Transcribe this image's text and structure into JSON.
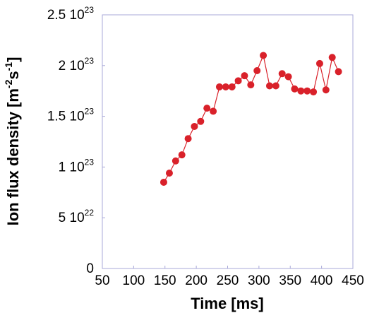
{
  "chart_data": {
    "type": "line",
    "xlabel": "Time [ms]",
    "ylabel": {
      "prefix": "Ion flux density [m",
      "exp1": "-2",
      "mid": "s",
      "exp2": "-1",
      "suffix": "]"
    },
    "xlim": [
      50,
      450
    ],
    "ylim": [
      0,
      2.5e+23
    ],
    "xticks": [
      {
        "value": 50,
        "label": "50"
      },
      {
        "value": 100,
        "label": "100"
      },
      {
        "value": 150,
        "label": "150"
      },
      {
        "value": 200,
        "label": "200"
      },
      {
        "value": 250,
        "label": "250"
      },
      {
        "value": 300,
        "label": "300"
      },
      {
        "value": 350,
        "label": "350"
      },
      {
        "value": 400,
        "label": "400"
      },
      {
        "value": 450,
        "label": "450"
      }
    ],
    "yticks": [
      {
        "value": 0,
        "mantissa": "0",
        "exp": ""
      },
      {
        "value": 5e+22,
        "mantissa": "5 10",
        "exp": "22"
      },
      {
        "value": 1e+23,
        "mantissa": "1 10",
        "exp": "23"
      },
      {
        "value": 1.5e+23,
        "mantissa": "1.5 10",
        "exp": "23"
      },
      {
        "value": 2e+23,
        "mantissa": "2 10",
        "exp": "23"
      },
      {
        "value": 2.5e+23,
        "mantissa": "2.5 10",
        "exp": "23"
      }
    ],
    "series": [
      {
        "color": "#d9212a",
        "x": [
          148,
          157,
          167,
          177,
          187,
          197,
          207,
          217,
          227,
          237,
          247,
          257,
          267,
          277,
          287,
          297,
          307,
          317,
          327,
          337,
          347,
          357,
          367,
          377,
          387,
          397,
          407,
          417,
          427
        ],
        "y": [
          8.5e+22,
          9.4e+22,
          1.06e+23,
          1.12e+23,
          1.28e+23,
          1.4e+23,
          1.45e+23,
          1.58e+23,
          1.55e+23,
          1.79e+23,
          1.79e+23,
          1.79e+23,
          1.85e+23,
          1.9e+23,
          1.81e+23,
          1.95e+23,
          2.1e+23,
          1.8e+23,
          1.8e+23,
          1.92e+23,
          1.89e+23,
          1.77e+23,
          1.75e+23,
          1.75e+23,
          1.74e+23,
          2.02e+23,
          1.76e+23,
          2.08e+23,
          1.94e+23
        ]
      }
    ]
  }
}
